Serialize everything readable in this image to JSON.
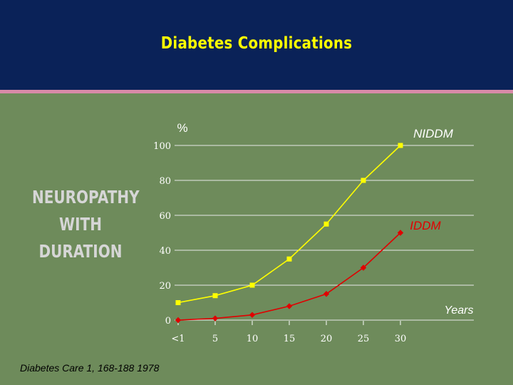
{
  "title": "Diabetes Complications",
  "side_label": [
    "NEUROPATHY",
    "WITH",
    "DURATION"
  ],
  "citation": "Diabetes Care 1, 168-188 1978",
  "colors": {
    "background": "#6E8B5B",
    "header": "#0A2258",
    "accent_rule": "#D88AA8",
    "title": "#FFFF00",
    "niddm": "#FFFF00",
    "iddm": "#E00000"
  },
  "chart_data": {
    "type": "line",
    "ylabel": "%",
    "xlabel": "Years",
    "categories": [
      "<1",
      "5",
      "10",
      "15",
      "20",
      "25",
      "30"
    ],
    "ylim": [
      0,
      100
    ],
    "yticks": [
      0,
      20,
      40,
      60,
      80,
      100
    ],
    "grid": true,
    "series": [
      {
        "name": "NIDDM",
        "values": [
          10,
          14,
          20,
          35,
          55,
          80,
          100
        ],
        "color": "#FFFF00",
        "marker": "square"
      },
      {
        "name": "IDDM",
        "values": [
          0,
          1,
          3,
          8,
          15,
          30,
          50
        ],
        "color": "#E00000",
        "marker": "diamond"
      }
    ]
  }
}
